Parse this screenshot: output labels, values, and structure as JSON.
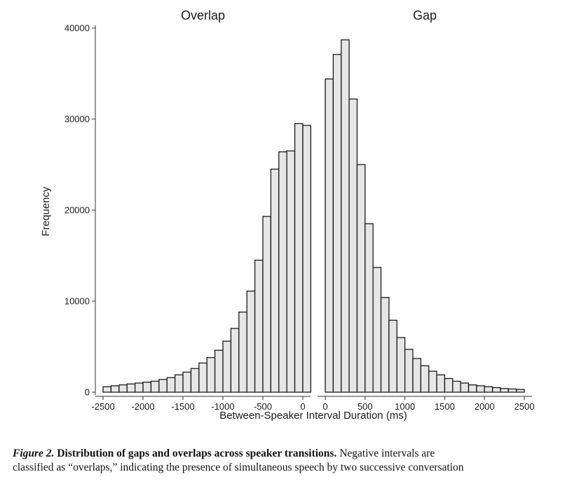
{
  "chart_data": {
    "type": "bar",
    "ylabel": "Frequency",
    "xlabel": "Between-Speaker Interval Duration (ms)",
    "ylim": [
      0,
      40000
    ],
    "y_ticks": [
      0,
      10000,
      20000,
      30000,
      40000
    ],
    "bin_width_ms": 100,
    "panels": [
      {
        "title": "Overlap",
        "xlim": [
          -2500,
          0
        ],
        "x_ticks": [
          -2500,
          -2000,
          -1500,
          -1000,
          -500,
          0
        ],
        "bin_starts": [
          -2500,
          -2400,
          -2300,
          -2200,
          -2100,
          -2000,
          -1900,
          -1800,
          -1700,
          -1600,
          -1500,
          -1400,
          -1300,
          -1200,
          -1100,
          -1000,
          -900,
          -800,
          -700,
          -600,
          -500,
          -400,
          -300,
          -200,
          -100
        ],
        "values": [
          600,
          700,
          800,
          900,
          1000,
          1100,
          1200,
          1400,
          1600,
          1900,
          2200,
          2600,
          3200,
          3800,
          4600,
          5600,
          7000,
          8800,
          11100,
          14500,
          19300,
          24500,
          26400,
          26500,
          29500
        ]
      },
      {
        "title": "Gap",
        "xlim": [
          0,
          2500
        ],
        "x_ticks": [
          0,
          500,
          1000,
          1500,
          2000,
          2500
        ],
        "bin_starts": [
          0,
          100,
          200,
          300,
          400,
          500,
          600,
          700,
          800,
          900,
          1000,
          1100,
          1200,
          1300,
          1400,
          1500,
          1600,
          1700,
          1800,
          1900,
          2000,
          2100,
          2200,
          2300,
          2400
        ],
        "values": [
          34400,
          37100,
          38700,
          32200,
          25000,
          18500,
          13700,
          10400,
          7900,
          6000,
          4700,
          3700,
          2900,
          2300,
          1900,
          1500,
          1200,
          1000,
          800,
          700,
          600,
          500,
          400,
          350,
          300
        ]
      }
    ],
    "extra_bar": {
      "panel": 0,
      "bin_start": 0,
      "value": 29300
    }
  },
  "caption": {
    "figure_number": "Figure 2.",
    "title": "Distribution of gaps and overlaps across speaker transitions.",
    "line1_text": " Negative intervals are",
    "line2_text": "classified as “overlaps,” indicating the presence of simultaneous speech by two successive conversation"
  },
  "colors": {
    "bar_fill": "#e6e6e6",
    "bar_stroke": "#1a1a1a",
    "axis": "#333333"
  }
}
